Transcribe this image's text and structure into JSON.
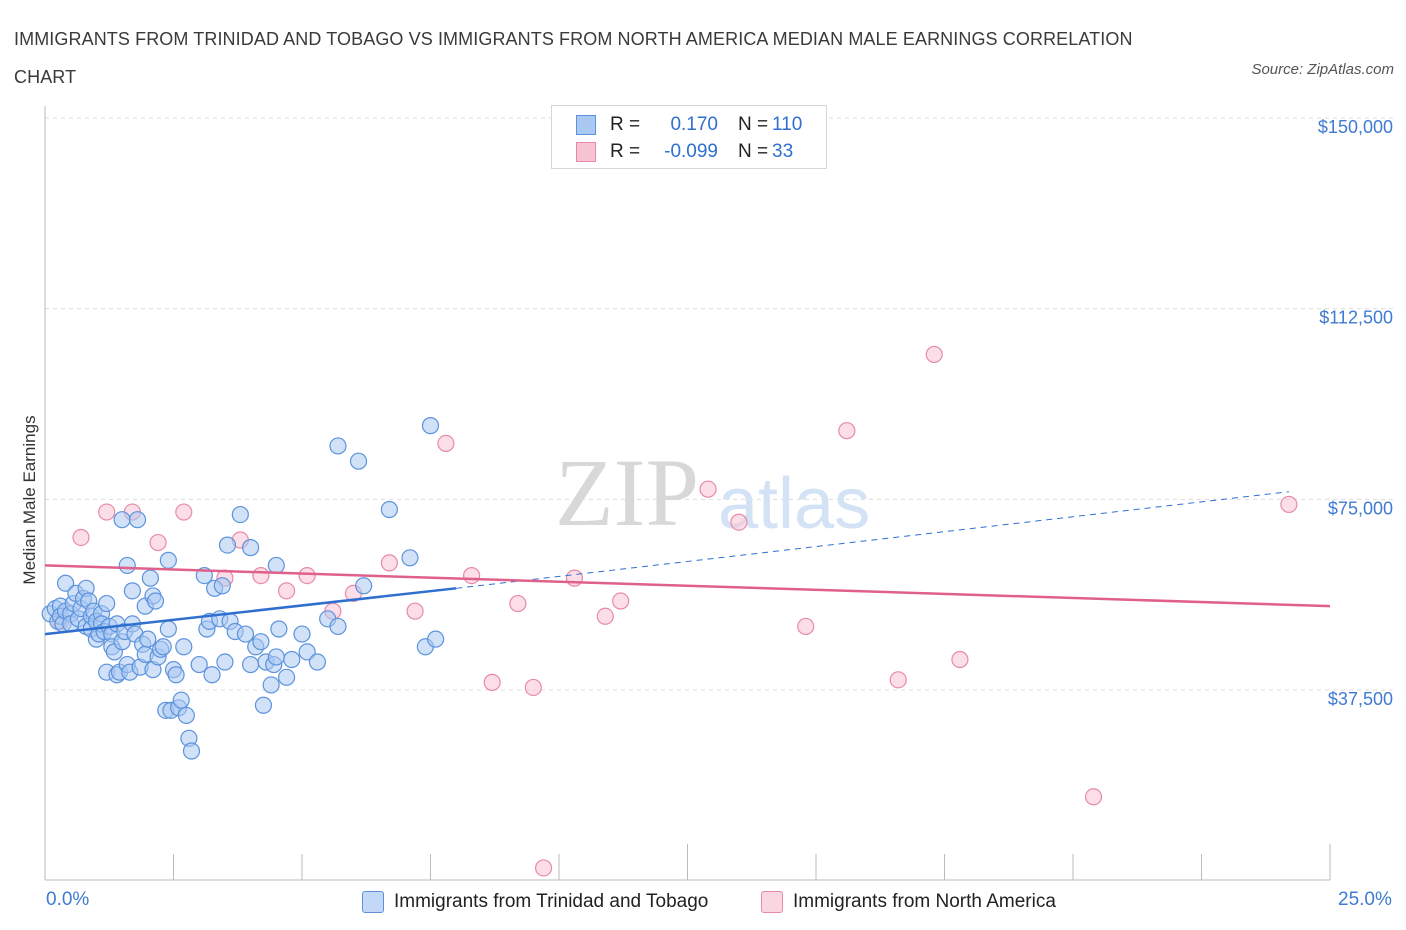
{
  "title": "IMMIGRANTS FROM TRINIDAD AND TOBAGO VS IMMIGRANTS FROM NORTH AMERICA MEDIAN MALE EARNINGS CORRELATION CHART",
  "source": "Source: ZipAtlas.com",
  "watermark": {
    "zip": "ZIP",
    "atlas": "atlas"
  },
  "legend": {
    "series1": {
      "r_label": "R =",
      "r_value": "0.170",
      "n_label": "N =",
      "n_value": "110"
    },
    "series2": {
      "r_label": "R =",
      "r_value": "-0.099",
      "n_label": "N =",
      "n_value": "33"
    }
  },
  "colors": {
    "blue_fill": "#a9c8f2",
    "blue_stroke": "#5d93dc",
    "blue_line": "#2f6fd0",
    "pink_fill": "#f7c3d3",
    "pink_stroke": "#e88aa7",
    "pink_line": "#e0608c",
    "axis_text": "#3f7bd2"
  },
  "chart_data": {
    "type": "scatter",
    "title": "IMMIGRANTS FROM TRINIDAD AND TOBAGO VS IMMIGRANTS FROM NORTH AMERICA MEDIAN MALE EARNINGS CORRELATION CHART",
    "xlabel": "",
    "ylabel": "Median Male Earnings",
    "xlim": [
      0,
      25
    ],
    "ylim": [
      0,
      150000
    ],
    "x_tick_labels": [
      "0.0%",
      "25.0%"
    ],
    "y_ticks": [
      {
        "value": 37500,
        "label": "$37,500"
      },
      {
        "value": 75000,
        "label": "$75,000"
      },
      {
        "value": 112500,
        "label": "$112,500"
      },
      {
        "value": 150000,
        "label": "$150,000"
      }
    ],
    "series": [
      {
        "name": "Immigrants from Trinidad and Tobago",
        "color": "blue",
        "trend": {
          "x0": 0,
          "y0": 48500,
          "x1": 8,
          "y1": 57500,
          "dashed_to_x": 24.2,
          "dashed_to_y": 76500
        },
        "points": [
          [
            0.1,
            52500
          ],
          [
            0.2,
            53500
          ],
          [
            0.25,
            51000
          ],
          [
            0.3,
            54000
          ],
          [
            0.3,
            52000
          ],
          [
            0.35,
            50500
          ],
          [
            0.4,
            53000
          ],
          [
            0.4,
            58500
          ],
          [
            0.5,
            52500
          ],
          [
            0.5,
            50500
          ],
          [
            0.55,
            54500
          ],
          [
            0.6,
            56500
          ],
          [
            0.65,
            51500
          ],
          [
            0.7,
            53500
          ],
          [
            0.75,
            55500
          ],
          [
            0.8,
            57500
          ],
          [
            0.8,
            50000
          ],
          [
            0.85,
            55000
          ],
          [
            0.9,
            52000
          ],
          [
            0.9,
            49500
          ],
          [
            0.95,
            53000
          ],
          [
            1.0,
            51000
          ],
          [
            1.0,
            47500
          ],
          [
            1.05,
            48500
          ],
          [
            1.1,
            52500
          ],
          [
            1.1,
            50500
          ],
          [
            1.15,
            49000
          ],
          [
            1.2,
            54500
          ],
          [
            1.2,
            41000
          ],
          [
            1.25,
            50000
          ],
          [
            1.3,
            48500
          ],
          [
            1.3,
            46000
          ],
          [
            1.35,
            45000
          ],
          [
            1.4,
            50500
          ],
          [
            1.4,
            40500
          ],
          [
            1.45,
            41000
          ],
          [
            1.5,
            47000
          ],
          [
            1.5,
            71000
          ],
          [
            1.55,
            49000
          ],
          [
            1.6,
            42500
          ],
          [
            1.6,
            62000
          ],
          [
            1.65,
            41000
          ],
          [
            1.7,
            57000
          ],
          [
            1.7,
            50500
          ],
          [
            1.75,
            48500
          ],
          [
            1.8,
            71000
          ],
          [
            1.85,
            42000
          ],
          [
            1.9,
            46500
          ],
          [
            1.95,
            44500
          ],
          [
            1.95,
            54000
          ],
          [
            2.0,
            47500
          ],
          [
            2.05,
            59500
          ],
          [
            2.1,
            56000
          ],
          [
            2.1,
            41500
          ],
          [
            2.15,
            55000
          ],
          [
            2.2,
            44000
          ],
          [
            2.25,
            45500
          ],
          [
            2.3,
            46000
          ],
          [
            2.35,
            33500
          ],
          [
            2.4,
            63000
          ],
          [
            2.4,
            49500
          ],
          [
            2.45,
            33500
          ],
          [
            2.5,
            41500
          ],
          [
            2.55,
            40500
          ],
          [
            2.6,
            34000
          ],
          [
            2.65,
            35500
          ],
          [
            2.7,
            46000
          ],
          [
            2.75,
            32500
          ],
          [
            2.8,
            28000
          ],
          [
            2.85,
            25500
          ],
          [
            3.0,
            42500
          ],
          [
            3.1,
            60000
          ],
          [
            3.15,
            49500
          ],
          [
            3.2,
            51000
          ],
          [
            3.25,
            40500
          ],
          [
            3.3,
            57500
          ],
          [
            3.4,
            51500
          ],
          [
            3.45,
            58000
          ],
          [
            3.5,
            43000
          ],
          [
            3.55,
            66000
          ],
          [
            3.6,
            51000
          ],
          [
            3.7,
            49000
          ],
          [
            3.8,
            72000
          ],
          [
            3.9,
            48500
          ],
          [
            4.0,
            42500
          ],
          [
            4.0,
            65500
          ],
          [
            4.1,
            46000
          ],
          [
            4.2,
            47000
          ],
          [
            4.25,
            34500
          ],
          [
            4.3,
            43000
          ],
          [
            4.4,
            38500
          ],
          [
            4.45,
            42500
          ],
          [
            4.5,
            44000
          ],
          [
            4.5,
            62000
          ],
          [
            4.55,
            49500
          ],
          [
            4.7,
            40000
          ],
          [
            4.8,
            43500
          ],
          [
            5.0,
            48500
          ],
          [
            5.1,
            45000
          ],
          [
            5.3,
            43000
          ],
          [
            5.5,
            51500
          ],
          [
            5.7,
            50000
          ],
          [
            5.7,
            85500
          ],
          [
            6.1,
            82500
          ],
          [
            6.2,
            58000
          ],
          [
            6.7,
            73000
          ],
          [
            7.1,
            63500
          ],
          [
            7.4,
            46000
          ],
          [
            7.5,
            89500
          ],
          [
            7.6,
            47500
          ]
        ]
      },
      {
        "name": "Immigrants from North America",
        "color": "pink",
        "trend": {
          "x0": 0,
          "y0": 62000,
          "x1": 25,
          "y1": 54000
        },
        "points": [
          [
            0.3,
            51000
          ],
          [
            0.7,
            67500
          ],
          [
            1.2,
            72500
          ],
          [
            1.7,
            72500
          ],
          [
            2.2,
            66500
          ],
          [
            2.7,
            72500
          ],
          [
            3.5,
            59500
          ],
          [
            3.8,
            67000
          ],
          [
            4.2,
            60000
          ],
          [
            4.7,
            57000
          ],
          [
            5.1,
            60000
          ],
          [
            5.6,
            53000
          ],
          [
            6.0,
            56500
          ],
          [
            6.7,
            62500
          ],
          [
            7.2,
            53000
          ],
          [
            7.8,
            86000
          ],
          [
            8.3,
            60000
          ],
          [
            8.7,
            39000
          ],
          [
            9.2,
            54500
          ],
          [
            9.5,
            38000
          ],
          [
            9.7,
            2500
          ],
          [
            10.3,
            59500
          ],
          [
            10.9,
            52000
          ],
          [
            11.2,
            55000
          ],
          [
            12.9,
            77000
          ],
          [
            13.5,
            70500
          ],
          [
            14.8,
            50000
          ],
          [
            15.6,
            88500
          ],
          [
            16.6,
            39500
          ],
          [
            17.3,
            103500
          ],
          [
            17.8,
            43500
          ],
          [
            20.4,
            16500
          ],
          [
            24.2,
            74000
          ]
        ]
      }
    ]
  }
}
